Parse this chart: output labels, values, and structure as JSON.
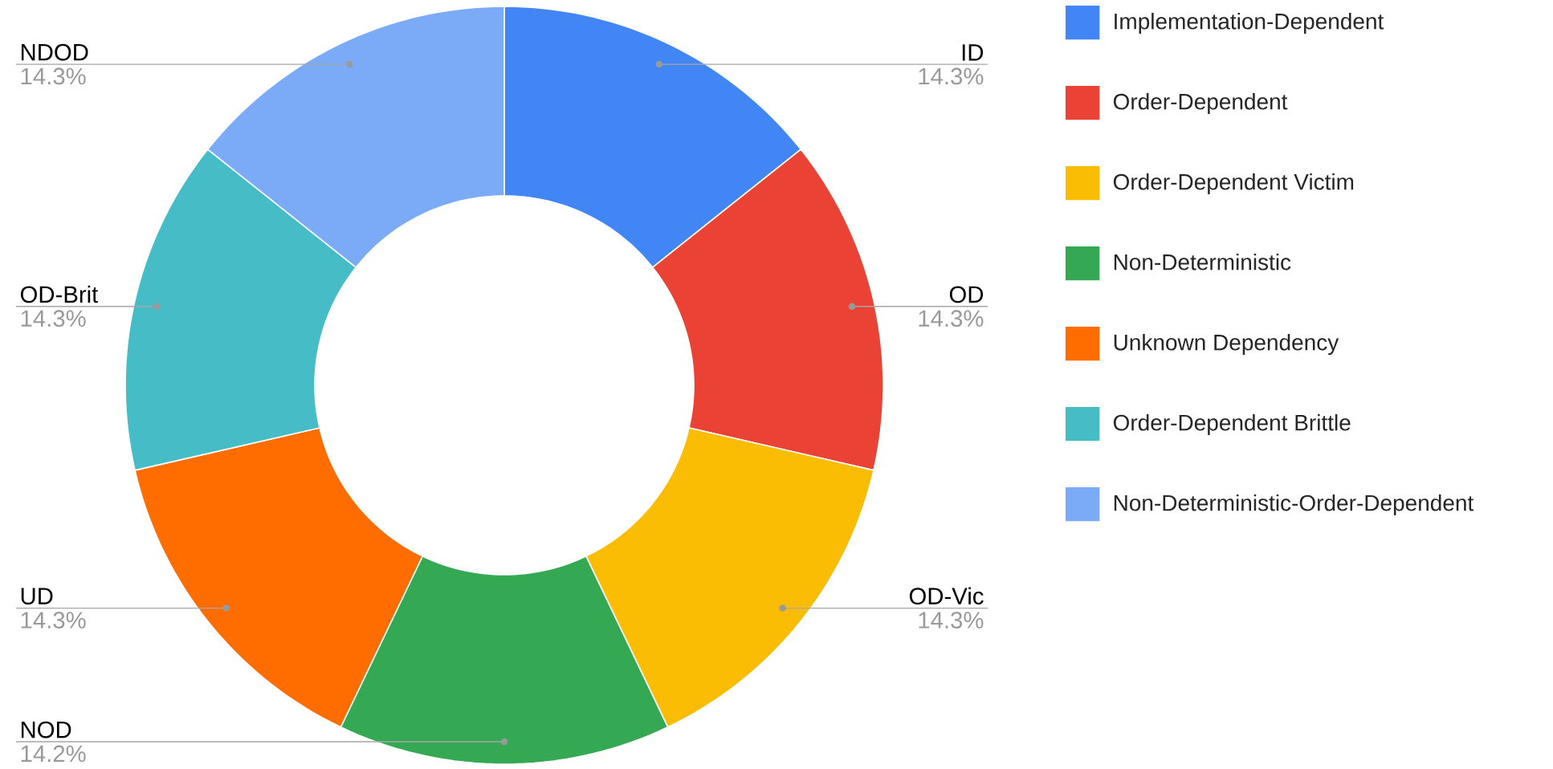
{
  "chart_data": {
    "type": "donut",
    "categories": [
      "Implementation-Dependent",
      "Order-Dependent",
      "Order-Dependent Victim",
      "Non-Deterministic",
      "Unknown Dependency",
      "Order-Dependent Brittle",
      "Non-Deterministic-Order-Dependent"
    ],
    "values": [
      14.3,
      14.3,
      14.3,
      14.2,
      14.3,
      14.3,
      14.3
    ],
    "colors": [
      "#4285f4",
      "#ea4335",
      "#fbbc04",
      "#34a853",
      "#ff6d01",
      "#46bdc6",
      "#7baaf7"
    ],
    "value_labels": [
      "14.3%",
      "14.3%",
      "14.3%",
      "14.2%",
      "14.3%",
      "14.3%",
      "14.3%"
    ],
    "annotations": [
      "ID",
      "OD",
      "OD-Vic",
      "NOD",
      "UD",
      "OD-Brit",
      "NDOD"
    ],
    "legend": "right"
  }
}
